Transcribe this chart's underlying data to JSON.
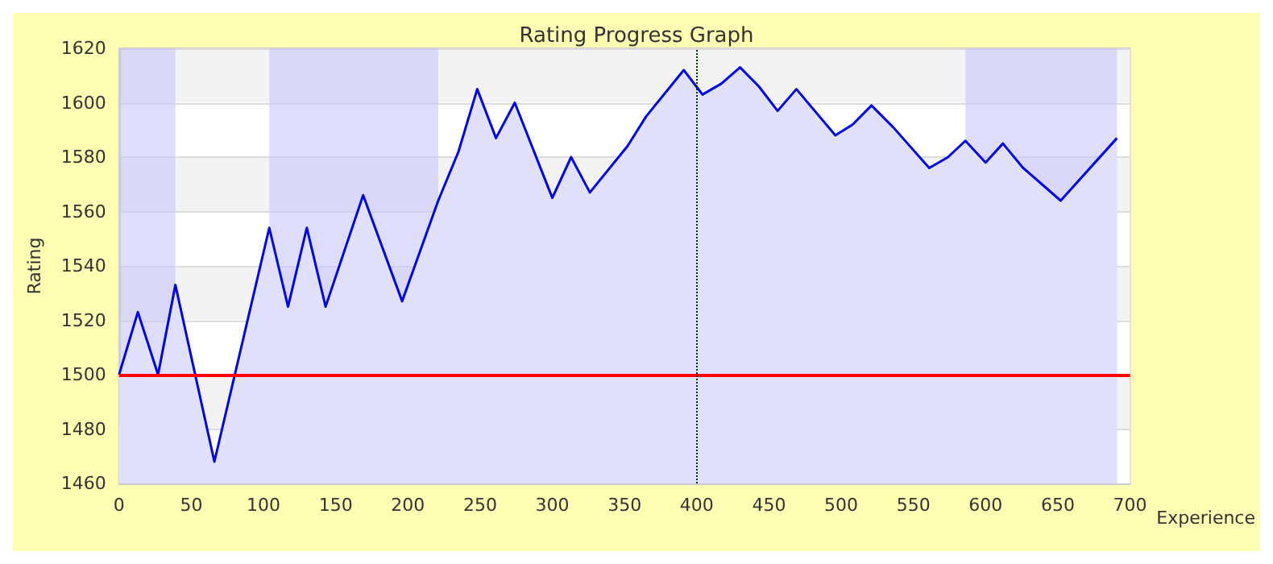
{
  "chart_data": {
    "type": "area",
    "title": "Rating Progress Graph",
    "xlabel": "Experience",
    "ylabel": "Rating",
    "x": [
      0,
      13,
      27,
      39,
      66,
      104,
      117,
      130,
      143,
      169,
      196,
      221,
      235,
      248,
      261,
      274,
      300,
      313,
      326,
      352,
      365,
      391,
      404,
      417,
      430,
      443,
      456,
      469,
      496,
      508,
      521,
      536,
      561,
      574,
      586,
      600,
      612,
      626,
      652,
      691
    ],
    "series": [
      {
        "color": "#0000ee",
        "values": [
          1500,
          1523,
          1500,
          1533,
          1468,
          1554,
          1525,
          1554,
          1525,
          1566,
          1527,
          1564,
          1582,
          1605,
          1587,
          1600,
          1565,
          1580,
          1567,
          1584,
          1595,
          1612,
          1603,
          1607,
          1613,
          1606,
          1597,
          1605,
          1588,
          1592,
          1599,
          1591,
          1576,
          1580,
          1586,
          1578,
          1585,
          1576,
          1564,
          1587
        ]
      }
    ],
    "xlim": [
      0,
      700
    ],
    "xticks": [
      0,
      50,
      100,
      150,
      200,
      250,
      300,
      350,
      400,
      450,
      500,
      550,
      600,
      650,
      700
    ],
    "ylim": [
      1460,
      1620
    ],
    "yticks": [
      1460,
      1480,
      1500,
      1520,
      1540,
      1560,
      1580,
      1600,
      1620
    ],
    "grid": "y",
    "ref_lines": [
      {
        "axis": "y",
        "value": 1500,
        "color": "#ff0000",
        "line_style": "solid"
      },
      {
        "axis": "x",
        "value": 400,
        "color": "#003300",
        "line_style": "dotted"
      }
    ],
    "bands": [
      {
        "axis": "x",
        "from": 0,
        "to": 39,
        "color": "#c8c8fa"
      },
      {
        "axis": "x",
        "from": 104,
        "to": 221,
        "color": "#c8c8fa"
      },
      {
        "axis": "x",
        "from": 586,
        "to": 691,
        "color": "#c8c8fa"
      }
    ]
  }
}
